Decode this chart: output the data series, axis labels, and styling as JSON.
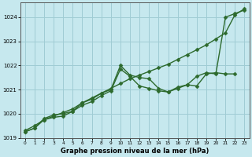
{
  "xlabel": "Graphe pression niveau de la mer (hPa)",
  "ylim": [
    1019.0,
    1024.6
  ],
  "xlim": [
    -0.5,
    23.5
  ],
  "yticks": [
    1019,
    1020,
    1021,
    1022,
    1023,
    1024
  ],
  "xticks": [
    0,
    1,
    2,
    3,
    4,
    5,
    6,
    7,
    8,
    9,
    10,
    11,
    12,
    13,
    14,
    15,
    16,
    17,
    18,
    19,
    20,
    21,
    22,
    23
  ],
  "bg_color": "#c6e8ee",
  "grid_color": "#9fccd4",
  "line_color": "#2d6a2d",
  "line1": {
    "x": [
      0,
      1,
      2,
      3,
      4,
      5,
      6,
      7,
      8,
      9,
      10,
      11,
      12,
      13,
      14,
      15,
      16,
      17,
      18,
      19,
      20,
      21,
      22,
      23
    ],
    "y": [
      1019.3,
      1019.5,
      1019.75,
      1019.9,
      1020.05,
      1020.2,
      1020.45,
      1020.65,
      1020.85,
      1021.05,
      1021.25,
      1021.45,
      1021.6,
      1021.75,
      1021.9,
      1022.05,
      1022.25,
      1022.45,
      1022.65,
      1022.85,
      1023.1,
      1023.35,
      1024.1,
      1024.35
    ]
  },
  "line2": {
    "x": [
      0,
      1,
      2,
      3,
      4,
      5,
      6,
      7,
      8,
      9,
      10,
      11,
      12,
      13,
      14,
      15,
      16,
      17,
      18,
      19,
      20,
      21,
      22,
      23
    ],
    "y": [
      1019.25,
      1019.4,
      1019.8,
      1019.95,
      1020.0,
      1020.1,
      1020.45,
      1020.6,
      1020.85,
      1021.0,
      1022.0,
      1021.6,
      1021.5,
      1021.45,
      1021.05,
      1020.9,
      1021.1,
      1021.2,
      1021.55,
      1021.7,
      1021.65,
      1024.0,
      1024.15,
      1024.3
    ]
  },
  "line3": {
    "x": [
      0,
      1,
      2,
      3,
      4,
      5,
      6,
      7,
      8,
      9,
      10,
      11,
      12,
      13,
      14,
      15,
      16,
      17,
      18,
      19,
      20,
      21,
      22,
      23
    ],
    "y": [
      1019.25,
      1019.4,
      1019.75,
      1019.85,
      1019.9,
      1020.1,
      1020.35,
      1020.5,
      1020.75,
      1020.95,
      1021.85,
      1021.55,
      1021.15,
      1021.05,
      1020.95,
      1020.9,
      1021.05,
      1021.2,
      1021.15,
      1021.65,
      1021.7,
      1021.65,
      1021.65,
      null
    ]
  },
  "marker": "D",
  "markersize": 2.5,
  "linewidth": 1.0
}
